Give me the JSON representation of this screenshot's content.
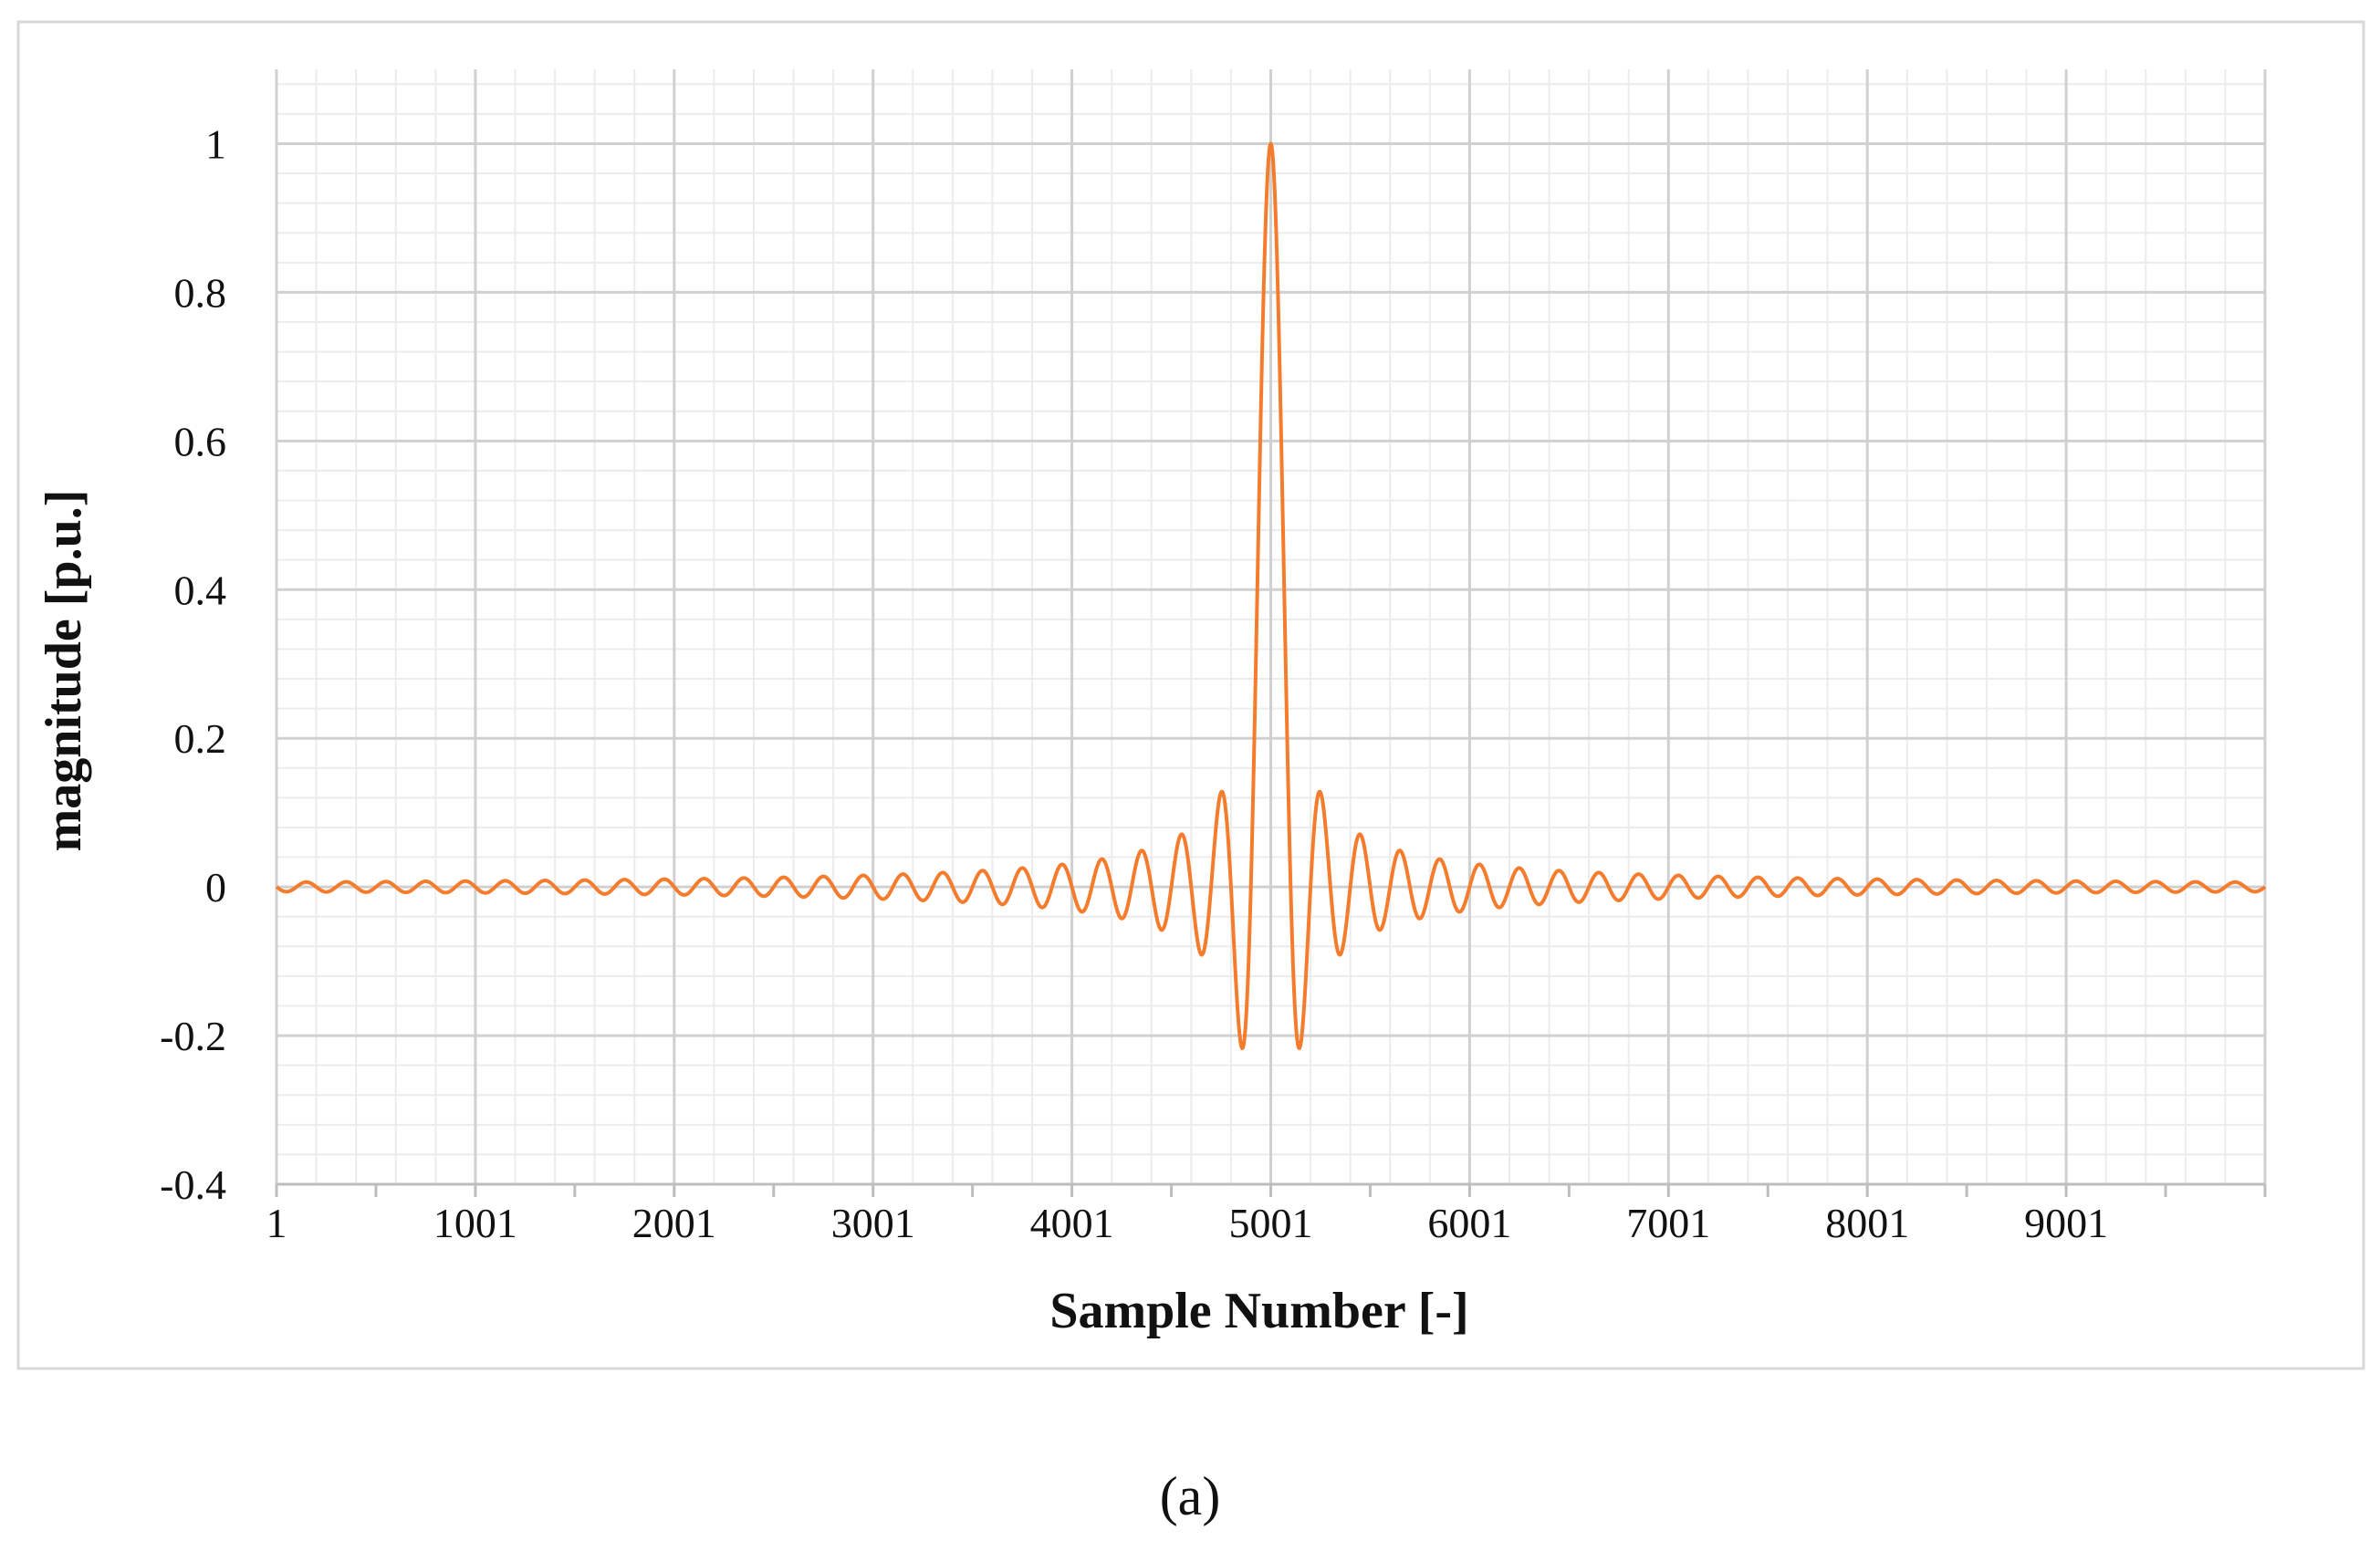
{
  "caption": "(a)",
  "chart_data": {
    "type": "line",
    "title": "",
    "xlabel": "Sample Number [-]",
    "ylabel": "magnitude [p.u.]",
    "xlim": [
      1,
      10001
    ],
    "ylim": [
      -0.4,
      1.1
    ],
    "x_ticks": [
      1,
      1001,
      2001,
      3001,
      4001,
      5001,
      6001,
      7001,
      8001,
      9001
    ],
    "x_tick_labels": [
      "1",
      "1001",
      "2001",
      "3001",
      "4001",
      "5001",
      "6001",
      "7001",
      "8001",
      "9001"
    ],
    "y_ticks": [
      -0.4,
      -0.2,
      0,
      0.2,
      0.4,
      0.6,
      0.8,
      1
    ],
    "y_tick_labels": [
      "-0.4",
      "-0.2",
      "0",
      "0.2",
      "0.4",
      "0.6",
      "0.8",
      "1"
    ],
    "grid": true,
    "legend": "none",
    "series": [
      {
        "color": "#F47C2C",
        "description": "sinc-shaped pulse centred at sample 5001 with oscillation period of about 200 samples",
        "peak": {
          "x": 5001,
          "y": 1.0
        },
        "points": [
          [
            4861,
            -0.217
          ],
          [
            4761,
            0.128
          ],
          [
            4661,
            -0.091
          ],
          [
            4561,
            0.071
          ],
          [
            4461,
            -0.058
          ],
          [
            4361,
            0.048
          ],
          [
            4261,
            -0.042
          ],
          [
            4161,
            0.037
          ],
          [
            4061,
            -0.033
          ],
          [
            3961,
            0.029
          ],
          [
            5141,
            -0.217
          ],
          [
            5241,
            0.128
          ],
          [
            5341,
            -0.091
          ],
          [
            5441,
            0.071
          ],
          [
            5541,
            -0.058
          ],
          [
            5641,
            0.048
          ],
          [
            5741,
            -0.042
          ],
          [
            5841,
            0.037
          ],
          [
            5941,
            -0.033
          ],
          [
            6041,
            0.029
          ]
        ]
      }
    ]
  },
  "colors": {
    "line": "#F47C2C",
    "major_grid": "#d0d0d0",
    "minor_grid": "#ececec",
    "frame": "#d8d8d8"
  }
}
